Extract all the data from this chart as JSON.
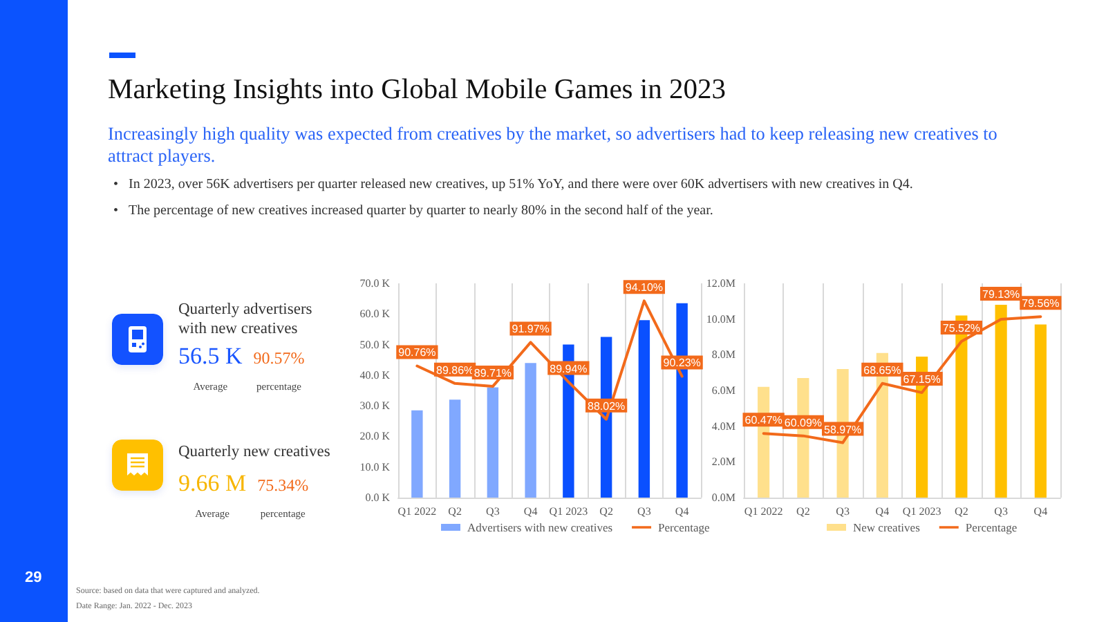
{
  "chart_data": [
    {
      "type": "other",
      "title": "Marketing Insights into Global Mobile Games in 2023",
      "subtitle": "Increasingly high quality was expected from creatives by the market, so advertisers had to keep releasing new creatives to attract players.",
      "annotations": [
        "• In 2023, over 56K advertisers per quarter released new creatives, up 51% YoY, and there were over 60K advertisers with new creatives in Q4.",
        "• The percentage of new creatives increased quarter by quarter to nearly 80% in the second half of the year.",
        "Source: based on data that were captured and analyzed.",
        "Date Range: Jan. 2022 - Dec. 2023",
        "29"
      ]
    },
    {
      "type": "other",
      "title": "Quarterly advertisers with new creatives",
      "annotations": [
        "56.5 K",
        "90.57%",
        "Average",
        "percentage"
      ]
    },
    {
      "type": "other",
      "title": "Quarterly new creatives",
      "annotations": [
        "9.66 M",
        "75.34%",
        "Average",
        "percentage"
      ]
    },
    {
      "type": "bar",
      "categories": [
        "Q1 2022",
        "Q2",
        "Q3",
        "Q4",
        "Q1 2023",
        "Q2",
        "Q3",
        "Q4"
      ],
      "series": [
        {
          "name": "Advertisers with new creatives",
          "color": "#80a8ff",
          "colors": [
            "#80a8ff",
            "#80a8ff",
            "#80a8ff",
            "#80a8ff",
            "#0a50ff",
            "#0a50ff",
            "#0a50ff",
            "#0a50ff"
          ],
          "values": [
            28.5,
            32,
            36,
            44,
            50,
            52.5,
            58,
            63.5
          ]
        },
        {
          "name": "Percentage",
          "type": "line",
          "axis": "y2",
          "color": "#f26a1b",
          "values": [
            90.76,
            89.86,
            89.71,
            91.97,
            89.94,
            88.02,
            94.1,
            90.23
          ],
          "value_labels": [
            "90.76%",
            "89.86%",
            "89.71%",
            "91.97%",
            "89.94%",
            "88.02%",
            "94.10%",
            "90.23%"
          ]
        }
      ],
      "ylim": [
        0,
        70
      ],
      "yticks": [
        {
          "value": 0,
          "label": "0.0 K"
        },
        {
          "value": 10,
          "label": "10.0 K"
        },
        {
          "value": 20,
          "label": "20.0 K"
        },
        {
          "value": 30,
          "label": "30.0 K"
        },
        {
          "value": 40,
          "label": "40.0 K"
        },
        {
          "value": 50,
          "label": "50.0 K"
        },
        {
          "value": 60,
          "label": "60.0 K"
        },
        {
          "value": 70,
          "label": "70.0 K"
        }
      ],
      "y2lim": [
        84,
        95
      ],
      "tick_labels": "xy",
      "grid": "x",
      "legend": "bottom",
      "marker": "none"
    },
    {
      "type": "bar",
      "categories": [
        "Q1 2022",
        "Q2",
        "Q3",
        "Q4",
        "Q1 2023",
        "Q2",
        "Q3",
        "Q4"
      ],
      "series": [
        {
          "name": "New creatives",
          "color": "#ffe08c",
          "colors": [
            "#ffe08c",
            "#ffe08c",
            "#ffe08c",
            "#ffe08c",
            "#ffc000",
            "#ffc000",
            "#ffc000",
            "#ffc000"
          ],
          "values": [
            6.2,
            6.7,
            7.2,
            8.1,
            7.9,
            10.2,
            10.8,
            9.7
          ]
        },
        {
          "name": "Percentage",
          "type": "line",
          "axis": "y2",
          "color": "#f26a1b",
          "values": [
            60.47,
            60.09,
            58.97,
            68.65,
            67.15,
            75.52,
            79.13,
            79.56
          ],
          "value_labels": [
            "60.47%",
            "60.09%",
            "58.97%",
            "68.65%",
            "67.15%",
            "75.52%",
            "79.13%",
            "79.56%"
          ]
        }
      ],
      "ylim": [
        0,
        12
      ],
      "yticks": [
        {
          "value": 0,
          "label": "0.0M"
        },
        {
          "value": 2,
          "label": "2.0M"
        },
        {
          "value": 4,
          "label": "4.0M"
        },
        {
          "value": 6,
          "label": "6.0M"
        },
        {
          "value": 8,
          "label": "8.0M"
        },
        {
          "value": 10,
          "label": "10.0M"
        },
        {
          "value": 12,
          "label": "12.0M"
        }
      ],
      "y2lim": [
        50,
        85
      ],
      "tick_labels": "xy",
      "grid": "x",
      "legend": "bottom",
      "marker": "none"
    }
  ]
}
